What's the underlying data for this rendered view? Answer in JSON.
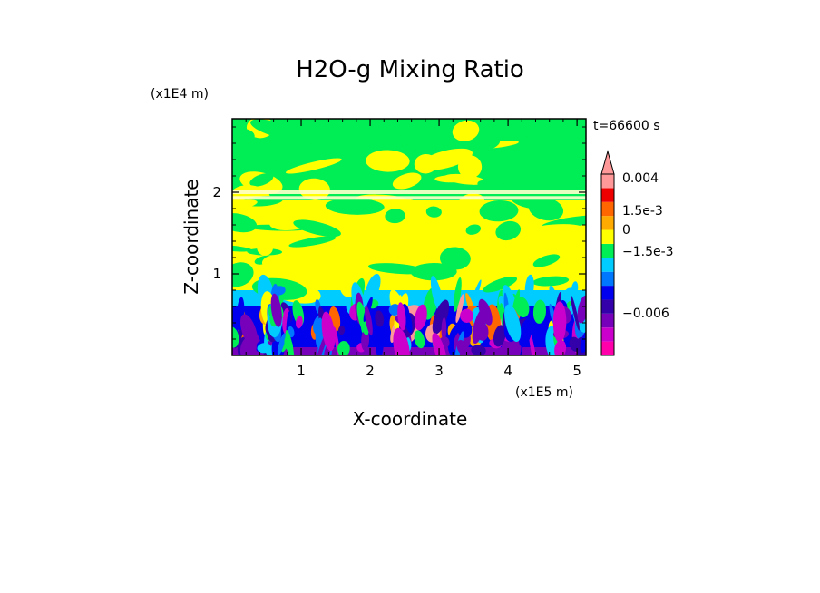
{
  "chart_data": {
    "type": "heatmap",
    "title": "H2O-g Mixing Ratio",
    "xlabel": "X-coordinate",
    "ylabel": "Z-coordinate",
    "x_unit": "(x1E5 m)",
    "y_unit": "(x1E4 m)",
    "time_label": "t=66600 s",
    "xlim": [
      0,
      5.13
    ],
    "ylim": [
      0,
      2.9
    ],
    "x_ticks": [
      "1",
      "2",
      "3",
      "4",
      "5"
    ],
    "y_ticks": [
      "1",
      "2"
    ],
    "colorbar": {
      "labels": [
        "0.004",
        "1.5e-3",
        "0",
        "−1.5e-3",
        "−0.006"
      ],
      "colors": [
        "#ff00aa",
        "#cc00cc",
        "#7700bb",
        "#3300aa",
        "#0000ee",
        "#0077ff",
        "#00ccff",
        "#00ee55",
        "#ffff00",
        "#ffaa00",
        "#ff6600",
        "#ee0000",
        "#ff9999"
      ],
      "extend_max": true
    },
    "field_bands": [
      {
        "z_from": 0.0,
        "z_to": 0.1,
        "dominant": "#7700bb"
      },
      {
        "z_from": 0.1,
        "z_to": 0.6,
        "dominant": "#0000ee"
      },
      {
        "z_from": 0.6,
        "z_to": 0.8,
        "dominant": "#00ccff"
      },
      {
        "z_from": 0.8,
        "z_to": 1.9,
        "dominant": "#ffff00"
      },
      {
        "z_from": 1.9,
        "z_to": 2.1,
        "dominant": "#00ee55"
      },
      {
        "z_from": 2.1,
        "z_to": 2.9,
        "dominant": "#00ee55"
      }
    ]
  }
}
